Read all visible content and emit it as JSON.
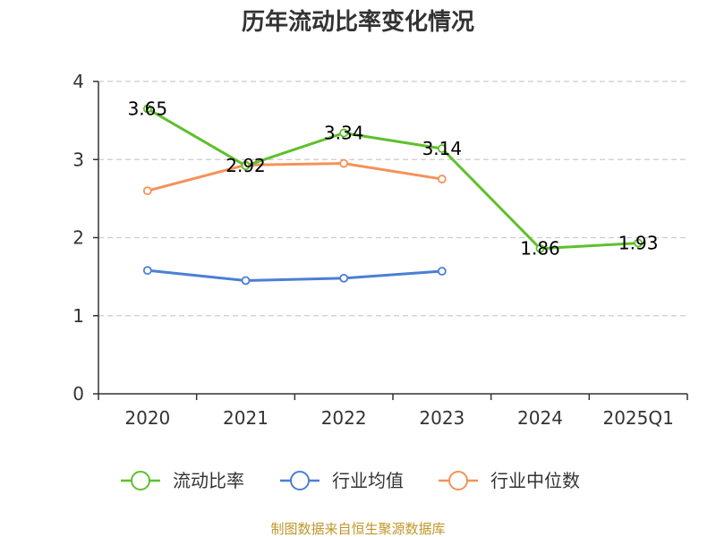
{
  "chart_data": {
    "type": "line",
    "title": "历年流动比率变化情况",
    "categories": [
      "2020",
      "2021",
      "2022",
      "2023",
      "2024",
      "2025Q1"
    ],
    "ylim": [
      0,
      4
    ],
    "yticks": [
      "0",
      "1",
      "2",
      "3",
      "4"
    ],
    "grid": true,
    "legend_position": "bottom",
    "series": [
      {
        "name": "流动比率",
        "color": "#5ec02c",
        "values": [
          3.65,
          2.92,
          3.34,
          3.14,
          1.86,
          1.93
        ],
        "labels": [
          "3.65",
          "2.92",
          "3.34",
          "3.14",
          "1.86",
          "1.93"
        ],
        "show_labels": true
      },
      {
        "name": "行业均值",
        "color": "#4a7fd6",
        "values": [
          1.58,
          1.45,
          1.48,
          1.57,
          null,
          null
        ],
        "show_labels": false
      },
      {
        "name": "行业中位数",
        "color": "#f5915a",
        "values": [
          2.6,
          2.93,
          2.95,
          2.75,
          null,
          null
        ],
        "show_labels": false
      }
    ],
    "source": "制图数据来自恒生聚源数据库"
  }
}
